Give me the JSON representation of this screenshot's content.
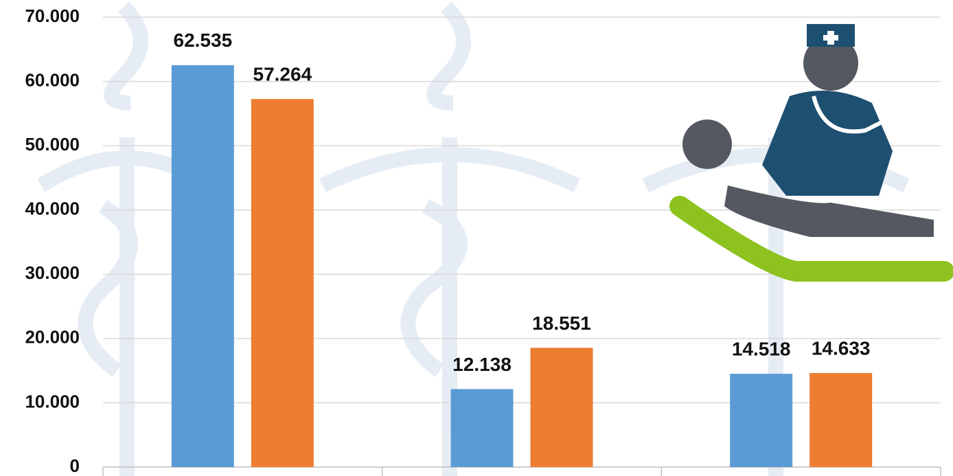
{
  "chart_data": {
    "type": "bar",
    "categories": [
      null,
      null,
      null
    ],
    "series": [
      {
        "color": "#5b9bd5",
        "values": [
          62535,
          12138,
          14518
        ],
        "value_labels": [
          "62.535",
          "12.138",
          "14.518"
        ]
      },
      {
        "color": "#ed7d31",
        "values": [
          57264,
          18551,
          14633
        ],
        "value_labels": [
          "57.264",
          "18.551",
          "14.633"
        ]
      }
    ],
    "ylim": [
      0,
      70000
    ],
    "yticks": [
      0,
      {
        "value": 10000,
        "label": "10.000"
      },
      {
        "value": 20000,
        "label": "20.000"
      },
      {
        "value": 30000,
        "label": "30.000"
      },
      {
        "value": 40000,
        "label": "40.000"
      },
      {
        "value": 50000,
        "label": "50.000"
      },
      {
        "value": 60000,
        "label": "60.000"
      },
      {
        "value": 70000,
        "label": "70.000"
      }
    ],
    "grid": true
  }
}
